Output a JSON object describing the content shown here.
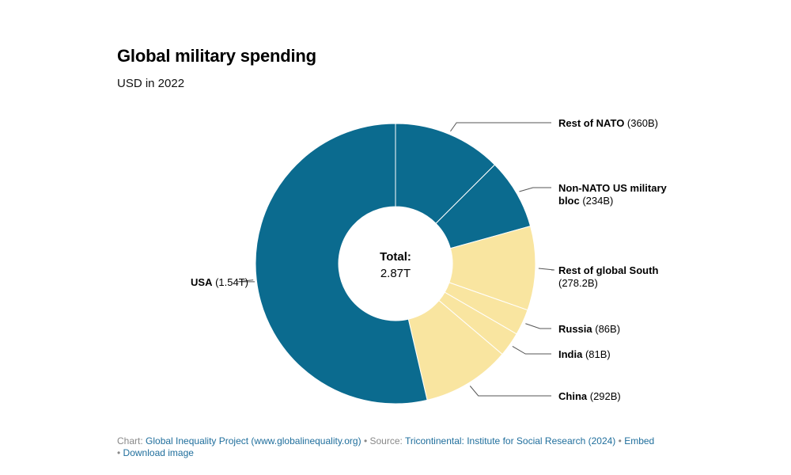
{
  "header": {
    "title": "Global military spending",
    "subtitle": "USD in 2022"
  },
  "chart_data": {
    "type": "pie",
    "donut": true,
    "center_label": {
      "line1": "Total:",
      "line2": "2.87T"
    },
    "slices": [
      {
        "name": "Rest of NATO",
        "value_label": "(360B)",
        "value": 360,
        "color": "#0b6b8f"
      },
      {
        "name": "Non-NATO US military bloc",
        "name_lines": [
          "Non-NATO US military",
          "bloc"
        ],
        "value_label": "(234B)",
        "value": 234,
        "color": "#0b6b8f"
      },
      {
        "name": "Rest of global South",
        "value_label": "(278.2B)",
        "value": 278.2,
        "color": "#f9e5a0",
        "value_on_new_line": true
      },
      {
        "name": "Russia",
        "value_label": "(86B)",
        "value": 86,
        "color": "#f9e5a0"
      },
      {
        "name": "India",
        "value_label": "(81B)",
        "value": 81,
        "color": "#f9e5a0"
      },
      {
        "name": "China",
        "value_label": "(292B)",
        "value": 292,
        "color": "#f9e5a0"
      },
      {
        "name": "USA",
        "value_label": "(1.54T)",
        "value": 1540,
        "color": "#0b6b8f"
      }
    ]
  },
  "footer": {
    "chart_prefix": "Chart: ",
    "chart_link": "Global Inequality Project (www.globalinequality.org)",
    "sep1": " • Source: ",
    "source_link": "Tricontinental: Institute for Social Research (2024)",
    "sep2": " • ",
    "embed_link": "Embed",
    "sep3": " • ",
    "download_link": "Download image"
  }
}
